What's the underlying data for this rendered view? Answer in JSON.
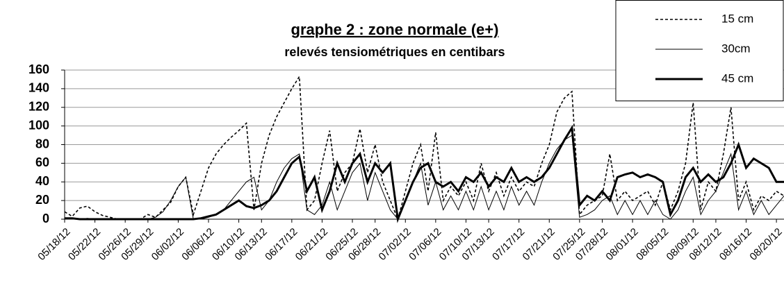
{
  "chart_data": {
    "type": "line",
    "title": "graphe 2 : zone normale (e+)",
    "subtitle": "relevés tensiométriques en centibars",
    "x": [
      "05/18/12",
      "05/19/12",
      "05/20/12",
      "05/21/12",
      "05/22/12",
      "05/23/12",
      "05/24/12",
      "05/25/12",
      "05/26/12",
      "05/27/12",
      "05/28/12",
      "05/29/12",
      "05/30/12",
      "05/31/12",
      "06/01/12",
      "06/02/12",
      "06/03/12",
      "06/04/12",
      "06/05/12",
      "06/06/12",
      "06/07/12",
      "06/08/12",
      "06/09/12",
      "06/10/12",
      "06/11/12",
      "06/12/12",
      "06/13/12",
      "06/14/12",
      "06/15/12",
      "06/16/12",
      "06/17/12",
      "06/18/12",
      "06/19/12",
      "06/20/12",
      "06/21/12",
      "06/22/12",
      "06/23/12",
      "06/24/12",
      "06/25/12",
      "06/26/12",
      "06/27/12",
      "06/28/12",
      "06/29/12",
      "06/30/12",
      "07/01/12",
      "07/02/12",
      "07/03/12",
      "07/04/12",
      "07/05/12",
      "07/06/12",
      "07/07/12",
      "07/08/12",
      "07/09/12",
      "07/10/12",
      "07/11/12",
      "07/12/12",
      "07/13/12",
      "07/14/12",
      "07/15/12",
      "07/16/12",
      "07/17/12",
      "07/18/12",
      "07/19/12",
      "07/20/12",
      "07/21/12",
      "07/22/12",
      "07/23/12",
      "07/24/12",
      "07/25/12",
      "07/26/12",
      "07/27/12",
      "07/28/12",
      "07/29/12",
      "07/30/12",
      "07/31/12",
      "08/01/12",
      "08/02/12",
      "08/03/12",
      "08/04/12",
      "08/05/12",
      "08/06/12",
      "08/07/12",
      "08/08/12",
      "08/09/12",
      "08/10/12",
      "08/11/12",
      "08/12/12",
      "08/13/12",
      "08/14/12",
      "08/15/12",
      "08/16/12",
      "08/17/12",
      "08/18/12",
      "08/19/12",
      "08/20/12",
      "08/21/12"
    ],
    "series": [
      {
        "name": "15 cm",
        "color": "#000000",
        "style": "dashed",
        "values": [
          8,
          3,
          12,
          14,
          8,
          4,
          2,
          0,
          0,
          0,
          0,
          5,
          2,
          10,
          18,
          35,
          45,
          5,
          30,
          55,
          70,
          80,
          88,
          95,
          103,
          10,
          60,
          90,
          110,
          125,
          140,
          153,
          10,
          20,
          60,
          95,
          30,
          50,
          60,
          97,
          50,
          80,
          40,
          20,
          0,
          30,
          60,
          80,
          30,
          93,
          20,
          35,
          25,
          40,
          20,
          60,
          30,
          50,
          25,
          45,
          30,
          40,
          35,
          60,
          80,
          115,
          130,
          137,
          5,
          15,
          20,
          25,
          70,
          20,
          30,
          20,
          25,
          30,
          15,
          40,
          10,
          30,
          60,
          125,
          10,
          40,
          30,
          70,
          120,
          20,
          40,
          10,
          25,
          20,
          30,
          25
        ]
      },
      {
        "name": "30cm",
        "color": "#000000",
        "style": "thin",
        "values": [
          1,
          1,
          0,
          1,
          0,
          0,
          0,
          0,
          0,
          0,
          0,
          0,
          2,
          8,
          20,
          35,
          45,
          0,
          0,
          2,
          5,
          10,
          20,
          30,
          40,
          45,
          10,
          20,
          40,
          55,
          65,
          70,
          10,
          5,
          15,
          40,
          10,
          30,
          50,
          60,
          20,
          50,
          30,
          10,
          0,
          20,
          40,
          60,
          15,
          40,
          10,
          25,
          10,
          30,
          10,
          35,
          10,
          30,
          10,
          35,
          15,
          30,
          15,
          40,
          60,
          75,
          85,
          90,
          2,
          5,
          10,
          20,
          25,
          5,
          20,
          5,
          20,
          5,
          20,
          5,
          0,
          10,
          30,
          45,
          5,
          20,
          30,
          50,
          70,
          10,
          30,
          5,
          20,
          5,
          15,
          25
        ]
      },
      {
        "name": "45 cm",
        "color": "#000000",
        "style": "thick",
        "values": [
          1,
          1,
          0,
          0,
          0,
          0,
          0,
          0,
          0,
          0,
          0,
          0,
          0,
          0,
          0,
          0,
          0,
          0,
          1,
          3,
          5,
          10,
          15,
          20,
          14,
          12,
          15,
          20,
          30,
          45,
          60,
          67,
          30,
          45,
          10,
          30,
          60,
          40,
          60,
          70,
          40,
          60,
          50,
          60,
          0,
          20,
          40,
          55,
          60,
          40,
          35,
          40,
          30,
          45,
          40,
          50,
          35,
          45,
          40,
          55,
          40,
          45,
          40,
          45,
          55,
          70,
          85,
          98,
          15,
          25,
          20,
          30,
          20,
          45,
          48,
          50,
          45,
          48,
          45,
          40,
          5,
          20,
          45,
          55,
          40,
          48,
          40,
          45,
          60,
          80,
          55,
          65,
          60,
          55,
          40,
          40
        ]
      }
    ],
    "xlim": [
      "05/18/12",
      "08/21/12"
    ],
    "xticks": [
      "05/18/12",
      "05/22/12",
      "05/26/12",
      "05/29/12",
      "06/02/12",
      "06/06/12",
      "06/10/12",
      "06/13/12",
      "06/17/12",
      "06/21/12",
      "06/25/12",
      "06/28/12",
      "07/02/12",
      "07/06/12",
      "07/10/12",
      "07/13/12",
      "07/17/12",
      "07/21/12",
      "07/25/12",
      "07/28/12",
      "08/01/12",
      "08/05/12",
      "08/09/12",
      "08/12/12",
      "08/16/12",
      "08/20/12"
    ],
    "ylim": [
      0,
      160
    ],
    "yticks": [
      0,
      20,
      40,
      60,
      80,
      100,
      120,
      140,
      160
    ],
    "grid": true,
    "legend": "top-right"
  }
}
